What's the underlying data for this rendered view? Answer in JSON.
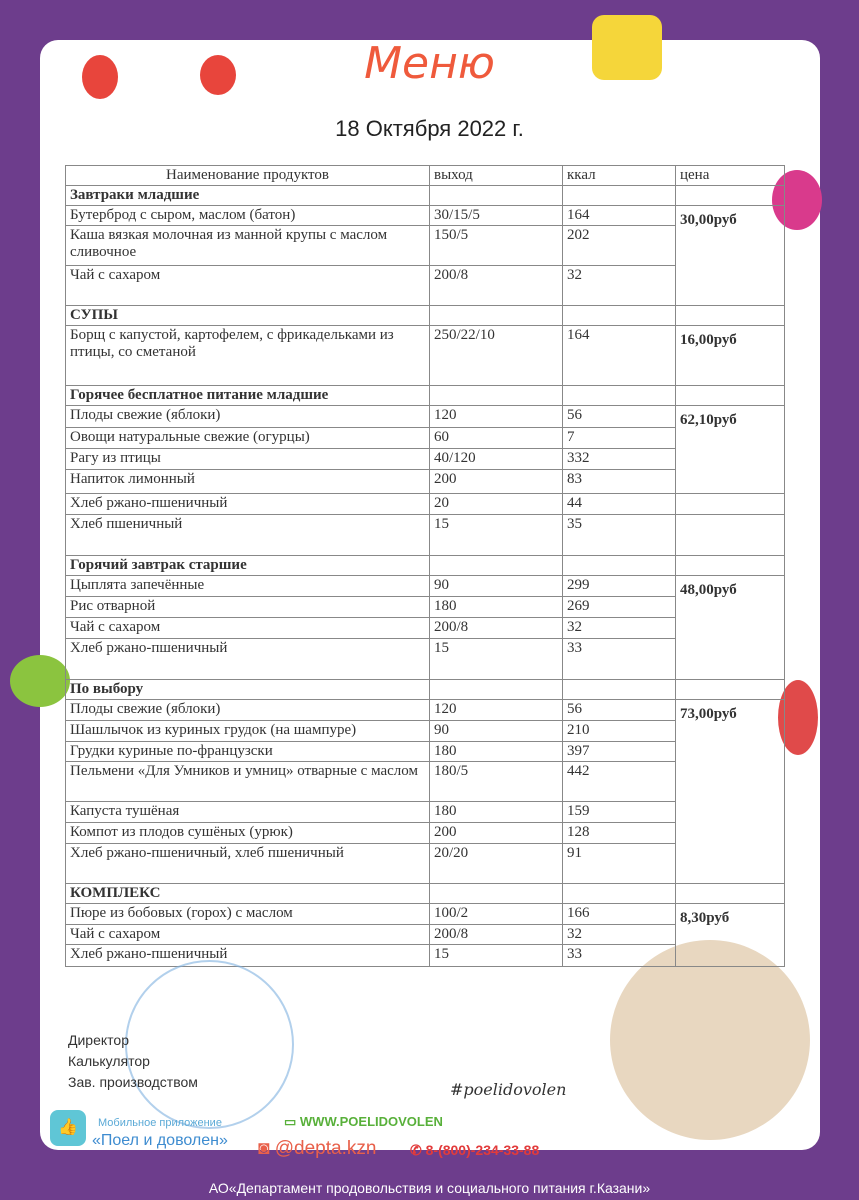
{
  "title": "Меню",
  "date": "18 Октября 2022 г.",
  "columns": [
    "Наименование продуктов",
    "выход",
    "ккал",
    "цена"
  ],
  "sections": [
    {
      "name": "Завтраки младшие",
      "rows": [
        [
          "Бутерброд с сыром, маслом (батон)",
          "30/15/5",
          "164"
        ],
        [
          "Каша вязкая молочная из манной крупы с маслом сливочное",
          "150/5",
          "202"
        ],
        [
          "Чай с сахаром",
          "200/8",
          "32"
        ]
      ],
      "price": "30,00руб"
    },
    {
      "name": "СУПЫ",
      "rows": [
        [
          "Борщ с капустой, картофелем, с фрикадельками из птицы, со сметаной",
          "250/22/10",
          "164"
        ]
      ],
      "price": "16,00руб"
    },
    {
      "name": "Горячее бесплатное питание младшие",
      "rows": [
        [
          "Плоды свежие (яблоки)",
          "120",
          "56"
        ],
        [
          "Овощи натуральные свежие (огурцы)",
          "60",
          "7"
        ],
        [
          "Рагу из птицы",
          "40/120",
          "332"
        ],
        [
          "Напиток лимонный",
          "200",
          "83"
        ],
        [
          "Хлеб ржано-пшеничный",
          "20",
          "44"
        ],
        [
          "Хлеб пшеничный",
          "15",
          "35"
        ]
      ],
      "price": "62,10руб"
    },
    {
      "name": "Горячий завтрак старшие",
      "rows": [
        [
          "Цыплята запечённые",
          "90",
          "299"
        ],
        [
          "Рис отварной",
          "180",
          "269"
        ],
        [
          "Чай с сахаром",
          "200/8",
          "32"
        ],
        [
          "Хлеб ржано-пшеничный",
          "15",
          "33"
        ]
      ],
      "price": "48,00руб"
    },
    {
      "name": "По выбору",
      "rows": [
        [
          "Плоды свежие (яблоки)",
          "120",
          "56"
        ],
        [
          "Шашлычок из куриных грудок (на шампуре)",
          "90",
          "210"
        ],
        [
          "Грудки куриные по-французски",
          "180",
          "397"
        ],
        [
          "Пельмени «Для Умников и умниц» отварные с маслом",
          "180/5",
          "442"
        ],
        [
          "Капуста тушёная",
          "180",
          "159"
        ],
        [
          "Компот из плодов сушёных (урюк)",
          "200",
          "128"
        ],
        [
          "Хлеб ржано-пшеничный, хлеб пшеничный",
          "20/20",
          "91"
        ]
      ],
      "price": "73,00руб"
    },
    {
      "name": "КОМПЛЕКС",
      "rows": [
        [
          "Пюре из бобовых (горох) с маслом",
          "100/2",
          "166"
        ],
        [
          "Чай с сахаром",
          "200/8",
          "32"
        ],
        [
          "Хлеб ржано-пшеничный",
          "15",
          "33"
        ]
      ],
      "price": "8,30руб"
    }
  ],
  "signatures": [
    "Директор",
    "Калькулятор",
    "Зав. производством"
  ],
  "app": {
    "label": "Мобильное приложение",
    "name": "«Поел и доволен»"
  },
  "website": "WWW.POELIDOVOLEN",
  "instagram": "@depta.kzn",
  "phone": "8-(800)-234-33-88",
  "hashtag": "#poelidovolen",
  "footer": "АО«Департамент продовольствия и социального питания г.Казани»",
  "colors": {
    "background": "#6d3d8c",
    "title": "#ef5a3c"
  }
}
